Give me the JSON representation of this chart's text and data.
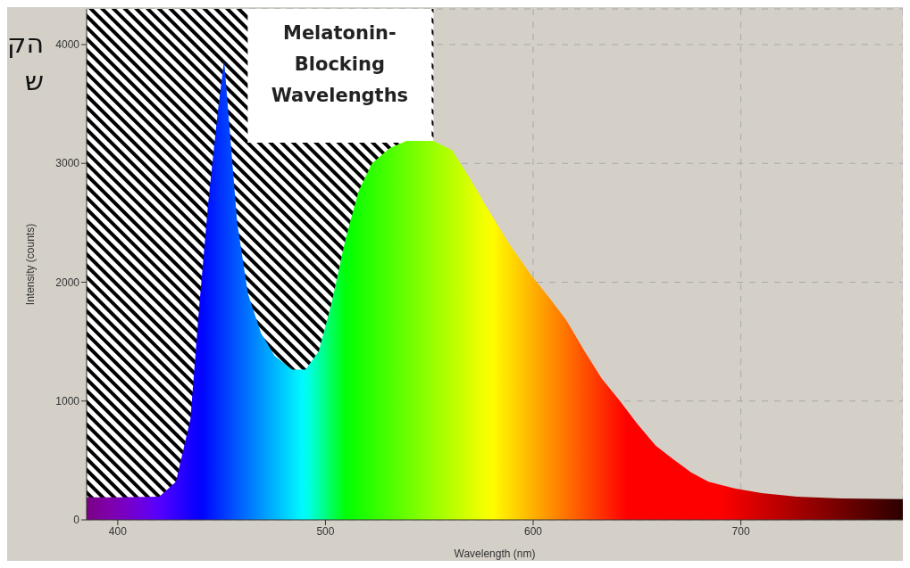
{
  "chart_data": {
    "type": "area",
    "xlabel": "Wavelength (nm)",
    "ylabel": "Intensity (counts)",
    "annotations": [
      "הק",
      "ש"
    ],
    "x": [
      385,
      400,
      420,
      428,
      435,
      439,
      443.5,
      448,
      451.2,
      454,
      457.5,
      462.7,
      469,
      475.5,
      484,
      490.4,
      496.8,
      503,
      509.6,
      516,
      522.4,
      531,
      539,
      552,
      561,
      569,
      578,
      588.5,
      599,
      607.7,
      616,
      624.7,
      633,
      641.8,
      650,
      659,
      667.4,
      676,
      684.4,
      697,
      710,
      727,
      748,
      778
    ],
    "values": [
      190,
      190,
      195,
      320,
      850,
      1750,
      2660,
      3410,
      3870,
      3260,
      2500,
      1900,
      1570,
      1380,
      1265,
      1265,
      1420,
      1830,
      2360,
      2770,
      3000,
      3130,
      3190,
      3190,
      3110,
      2890,
      2620,
      2320,
      2060,
      1870,
      1680,
      1420,
      1190,
      1000,
      810,
      625,
      510,
      400,
      320,
      265,
      225,
      195,
      180,
      175
    ],
    "xlim": [
      385,
      778
    ],
    "xticks": [
      400,
      500,
      600,
      700
    ],
    "ylim": [
      0,
      4300
    ],
    "yticks": [
      0,
      1000,
      2000,
      3000,
      4000
    ],
    "grid": true,
    "bands": [
      {
        "axis": "x",
        "from": 385,
        "to": 552,
        "label": "Melatonin-\nBlocking\nWavelengths"
      }
    ]
  }
}
